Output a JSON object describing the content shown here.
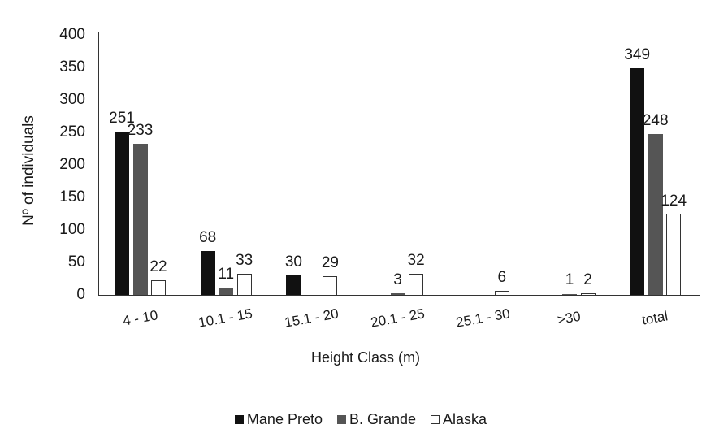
{
  "chart_data": {
    "type": "bar",
    "title": "",
    "xlabel": "Height Class (m)",
    "ylabel": "Nº of individuals",
    "ylim": [
      0,
      400
    ],
    "yticks": [
      0,
      50,
      100,
      150,
      200,
      250,
      300,
      350,
      400
    ],
    "grid": false,
    "legend_position": "bottom",
    "categories": [
      "4 - 10",
      "10.1 - 15",
      "15.1 - 20",
      "20.1 - 25",
      "25.1 - 30",
      ">30",
      "total"
    ],
    "series": [
      {
        "name": "Mane Preto",
        "color": "#111111",
        "values": [
          251,
          68,
          30,
          0,
          0,
          0,
          349
        ],
        "labels": [
          "251",
          "68",
          "30",
          "",
          "",
          "",
          "349"
        ]
      },
      {
        "name": "B. Grande",
        "color": "#555555",
        "values": [
          233,
          11,
          0,
          3,
          0,
          1,
          248
        ],
        "labels": [
          "233",
          "11",
          "",
          "3",
          "",
          "1",
          "248"
        ]
      },
      {
        "name": "Alaska",
        "color": "#ffffff",
        "values": [
          22,
          33,
          29,
          32,
          6,
          2,
          124
        ],
        "labels": [
          "22",
          "33",
          "29",
          "32",
          "6",
          "2",
          "124"
        ]
      }
    ]
  },
  "axis": {
    "x_title": "Height Class (m)",
    "y_title": "Nº of individuals"
  },
  "legend": {
    "items": [
      {
        "label": "Mane Preto",
        "color": "#111111"
      },
      {
        "label": "B. Grande",
        "color": "#555555"
      },
      {
        "label": "Alaska",
        "color": "#ffffff"
      }
    ]
  }
}
